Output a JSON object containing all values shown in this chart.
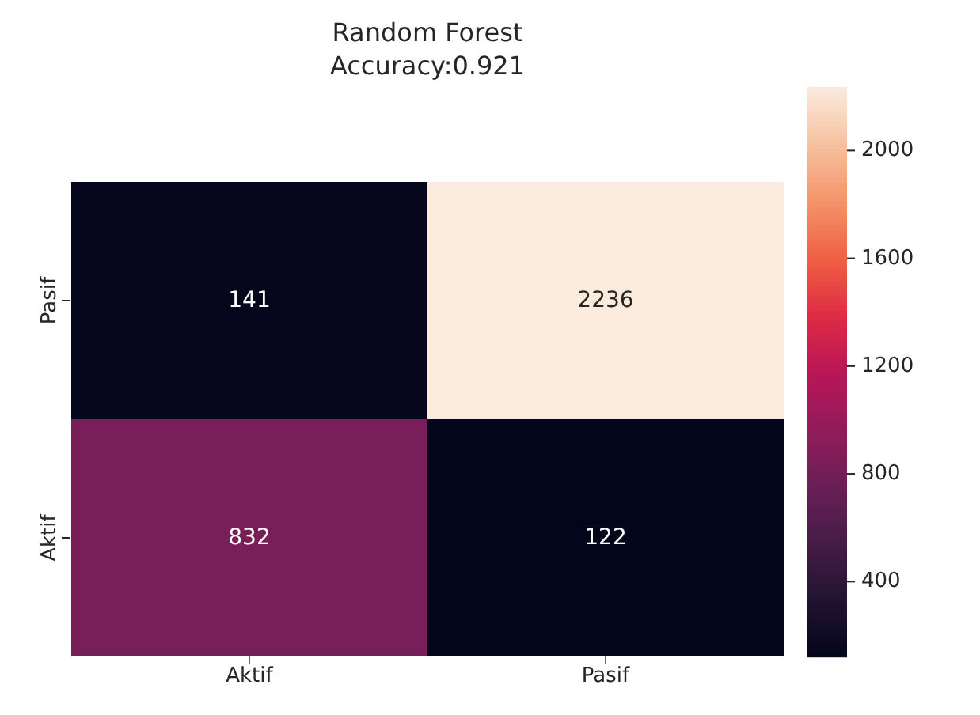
{
  "chart_data": {
    "type": "heatmap",
    "title": "Random Forest",
    "subtitle": "Accuracy:0.921",
    "categories": [
      "Aktif",
      "Pasif"
    ],
    "y_categories": [
      "Pasif",
      "Aktif"
    ],
    "cells": [
      [
        141,
        2236
      ],
      [
        832,
        122
      ]
    ],
    "clim": [
      122,
      2236
    ],
    "cticks": [
      400,
      800,
      1200,
      1600,
      2000
    ],
    "data_labels": true
  }
}
